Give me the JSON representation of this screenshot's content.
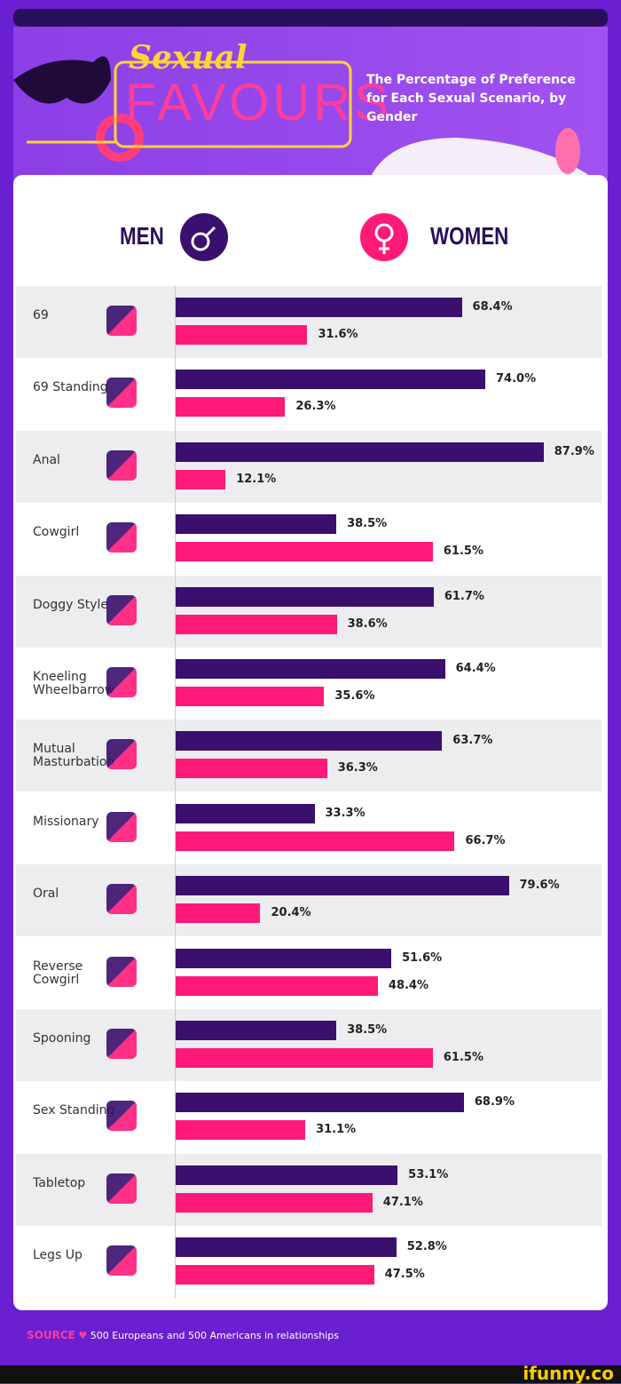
{
  "chart_data": {
    "type": "bar",
    "orientation": "horizontal",
    "title": "Sexual",
    "title_main": "FAVOURS",
    "subtitle": "The Percentage of Preference for Each Sexual Scenario, by Gender",
    "categories": [
      "69",
      "69 Standing",
      "Anal",
      "Cowgirl",
      "Doggy Style",
      "Kneeling Wheelbarrow",
      "Mutual Masturbation",
      "Missionary",
      "Oral",
      "Reverse Cowgirl",
      "Spooning",
      "Sex Standing",
      "Tabletop",
      "Legs Up"
    ],
    "series": [
      {
        "name": "MEN",
        "color": "#3a0f6e",
        "values": [
          68.4,
          74.0,
          87.9,
          38.5,
          61.7,
          64.4,
          63.7,
          33.3,
          79.6,
          51.6,
          38.5,
          68.9,
          53.1,
          52.8
        ],
        "value_labels": [
          "68.4%",
          "74.0%",
          "87.9%",
          "38.5%",
          "61.7%",
          "64.4%",
          "63.7%",
          "33.3%",
          "79.6%",
          "51.6%",
          "38.5%",
          "68.9%",
          "53.1%",
          "52.8%"
        ]
      },
      {
        "name": "WOMEN",
        "color": "#ff1a7a",
        "values": [
          31.6,
          26.3,
          12.1,
          61.5,
          38.6,
          35.6,
          36.3,
          66.7,
          20.4,
          48.4,
          61.5,
          31.1,
          47.1,
          47.5
        ],
        "value_labels": [
          "31.6%",
          "26.3%",
          "12.1%",
          "61.5%",
          "38.6%",
          "35.6%",
          "36.3%",
          "66.7%",
          "20.4%",
          "48.4%",
          "61.5%",
          "31.1%",
          "47.1%",
          "47.5%"
        ]
      }
    ],
    "source_label": "SOURCE",
    "source": "500 Europeans and 500 Americans in relationships"
  },
  "watermark": "ifunny.co"
}
